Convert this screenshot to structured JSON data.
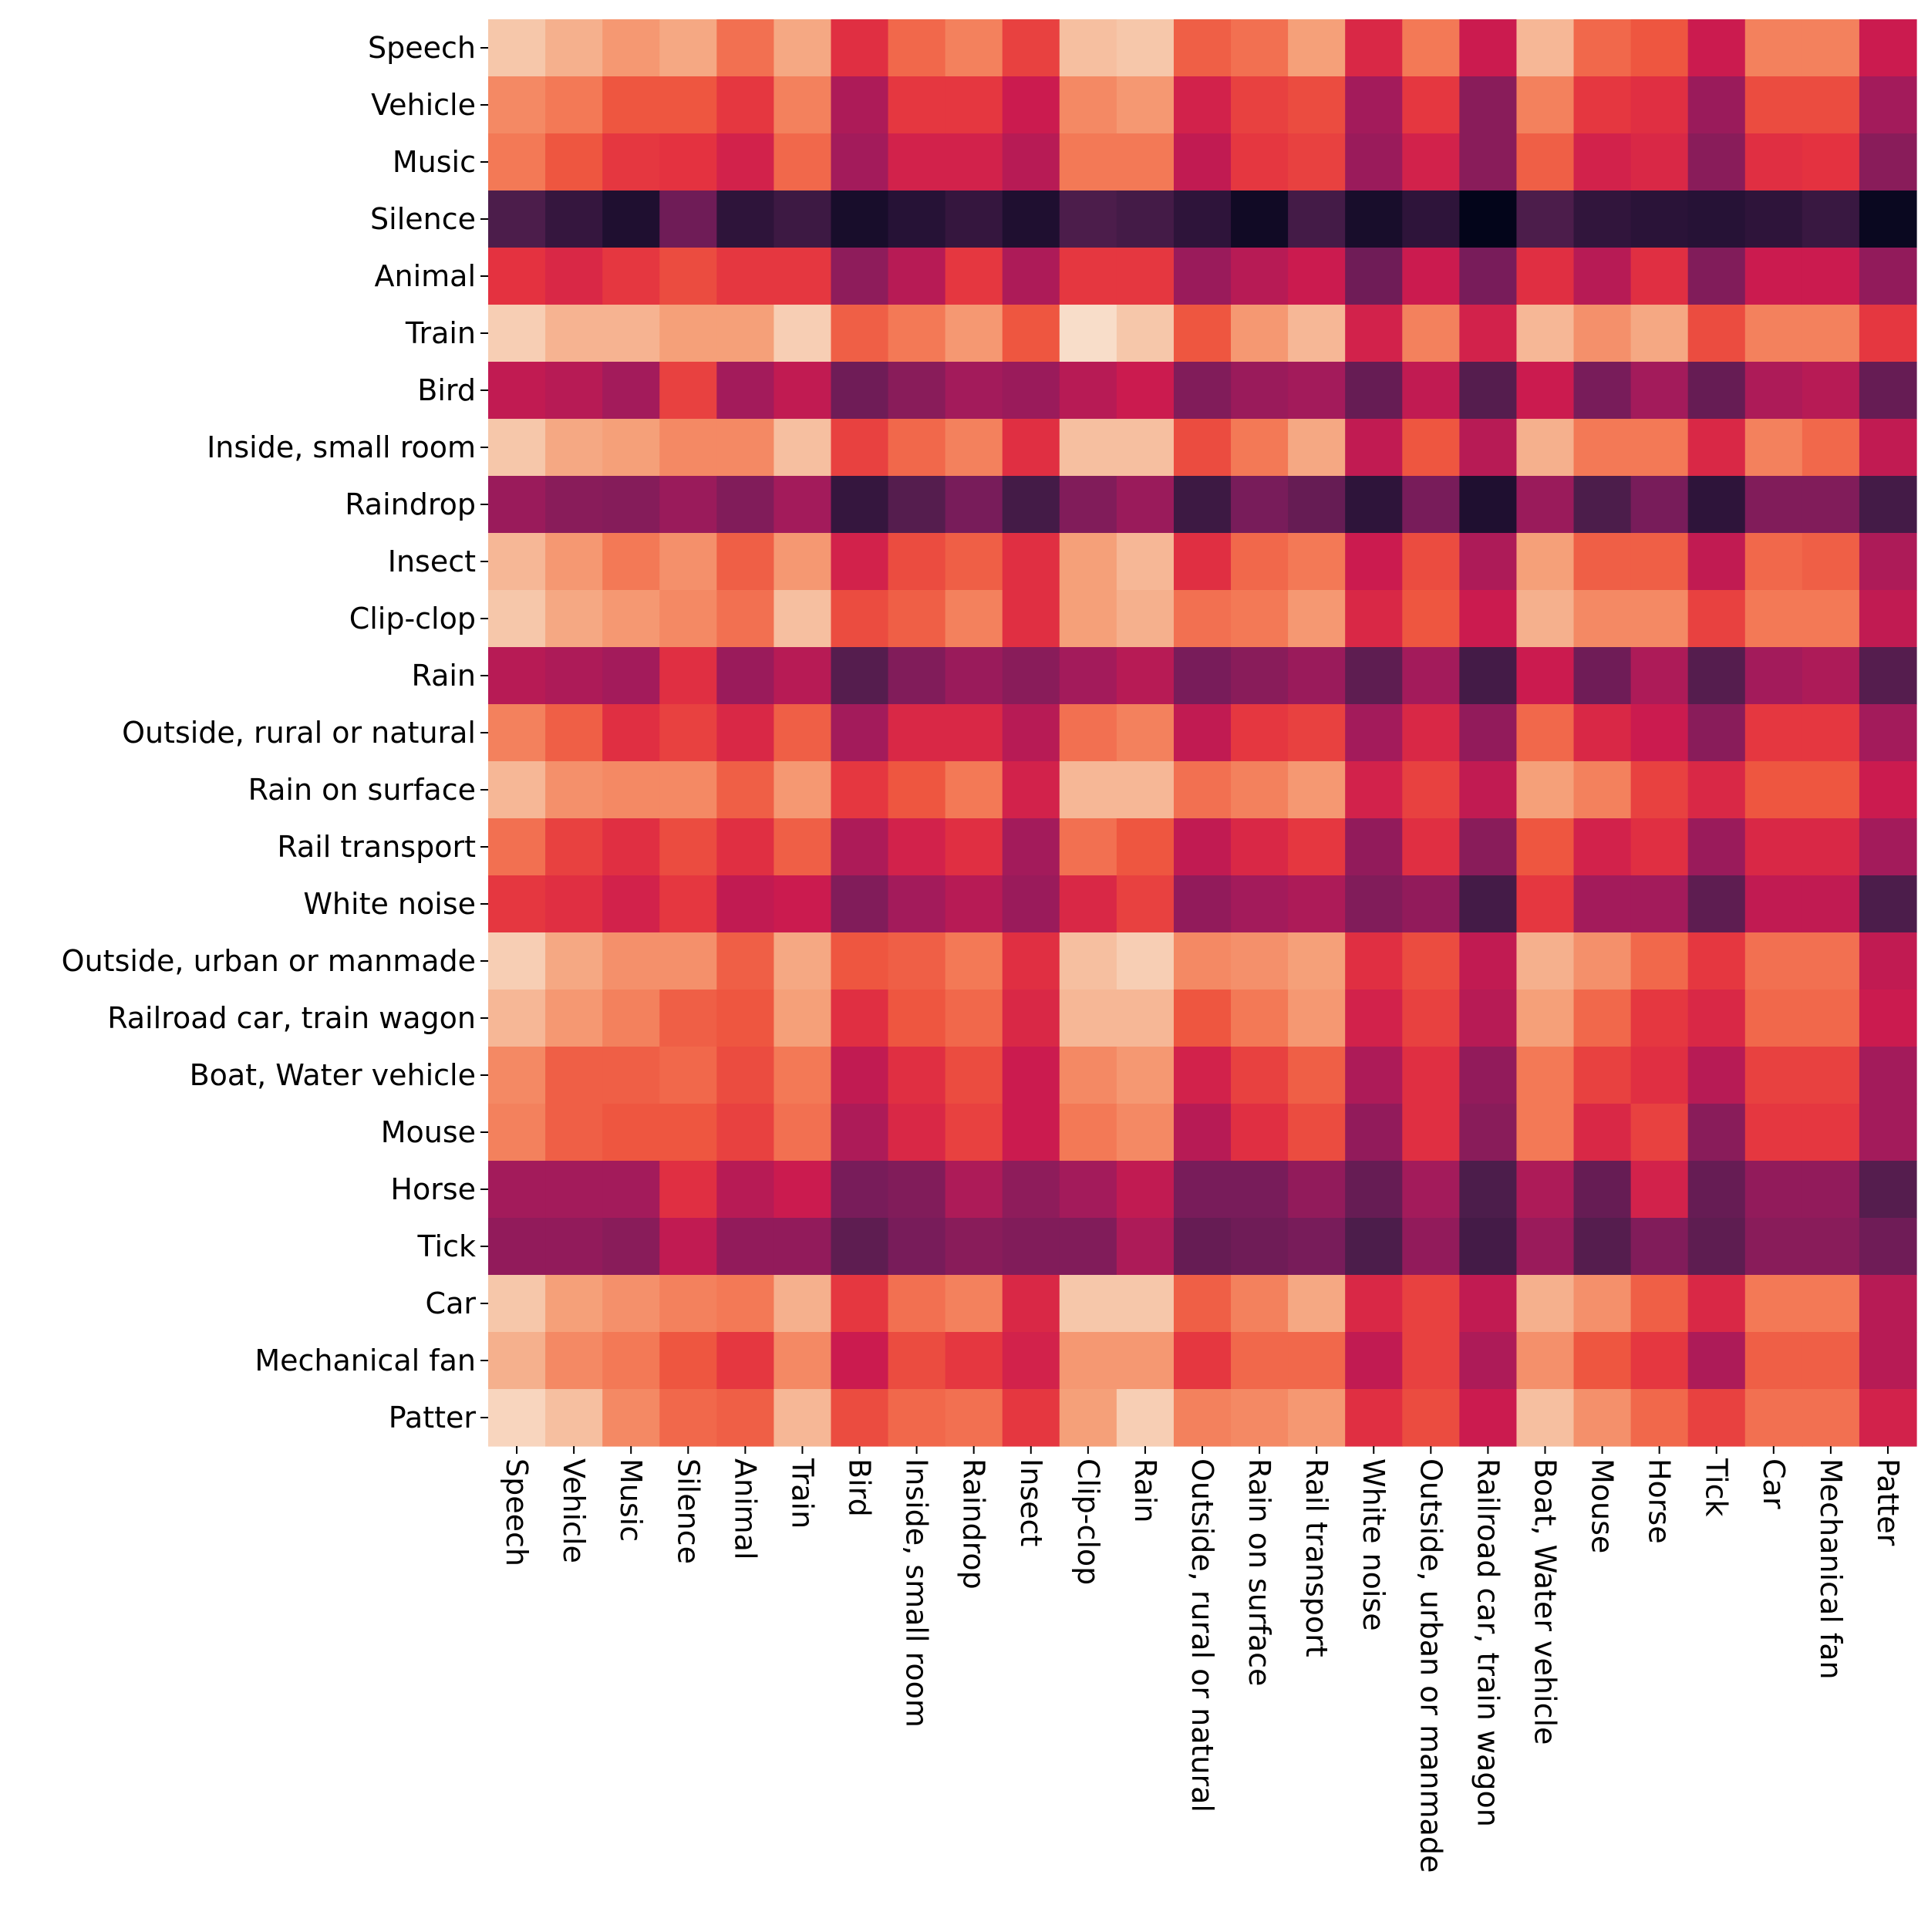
{
  "chart_data": {
    "type": "heatmap",
    "title": "",
    "xlabel": "",
    "ylabel": "",
    "colormap": "rocket",
    "grid": false,
    "legend": "none",
    "row_labels": [
      "Speech",
      "Vehicle",
      "Music",
      "Silence",
      "Animal",
      "Train",
      "Bird",
      "Inside, small room",
      "Raindrop",
      "Insect",
      "Clip-clop",
      "Rain",
      "Outside, rural or natural",
      "Rain on surface",
      "Rail transport",
      "White noise",
      "Outside, urban or manmade",
      "Railroad car, train wagon",
      "Boat, Water vehicle",
      "Mouse",
      "Horse",
      "Tick",
      "Car",
      "Mechanical fan",
      "Patter"
    ],
    "col_labels": [
      "Speech",
      "Vehicle",
      "Music",
      "Silence",
      "Animal",
      "Train",
      "Bird",
      "Inside, small room",
      "Raindrop",
      "Insect",
      "Clip-clop",
      "Rain",
      "Outside, rural or natural",
      "Rain on surface",
      "Rail transport",
      "White noise",
      "Outside, urban or manmade",
      "Railroad car, train wagon",
      "Boat, Water vehicle",
      "Mouse",
      "Horse",
      "Tick",
      "Car",
      "Mechanical fan",
      "Patter"
    ],
    "values_scale": [
      0,
      1
    ],
    "values": [
      [
        0.9,
        0.84,
        0.78,
        0.82,
        0.68,
        0.82,
        0.54,
        0.66,
        0.72,
        0.58,
        0.88,
        0.9,
        0.64,
        0.68,
        0.8,
        0.52,
        0.7,
        0.48,
        0.86,
        0.66,
        0.62,
        0.48,
        0.72,
        0.72,
        0.48
      ],
      [
        0.74,
        0.7,
        0.62,
        0.62,
        0.56,
        0.72,
        0.42,
        0.56,
        0.56,
        0.48,
        0.74,
        0.78,
        0.5,
        0.58,
        0.6,
        0.4,
        0.56,
        0.34,
        0.72,
        0.56,
        0.54,
        0.38,
        0.6,
        0.6,
        0.4
      ],
      [
        0.7,
        0.62,
        0.56,
        0.55,
        0.5,
        0.66,
        0.4,
        0.5,
        0.5,
        0.44,
        0.7,
        0.7,
        0.46,
        0.56,
        0.58,
        0.38,
        0.5,
        0.34,
        0.64,
        0.5,
        0.52,
        0.34,
        0.54,
        0.55,
        0.34
      ],
      [
        0.2,
        0.14,
        0.08,
        0.28,
        0.12,
        0.16,
        0.06,
        0.1,
        0.14,
        0.08,
        0.2,
        0.18,
        0.12,
        0.04,
        0.18,
        0.06,
        0.12,
        0.0,
        0.2,
        0.13,
        0.11,
        0.1,
        0.12,
        0.15,
        0.02
      ],
      [
        0.55,
        0.52,
        0.56,
        0.6,
        0.56,
        0.56,
        0.35,
        0.44,
        0.56,
        0.42,
        0.56,
        0.56,
        0.38,
        0.44,
        0.48,
        0.28,
        0.48,
        0.3,
        0.54,
        0.44,
        0.54,
        0.32,
        0.48,
        0.48,
        0.36
      ],
      [
        0.92,
        0.85,
        0.85,
        0.8,
        0.8,
        0.92,
        0.64,
        0.7,
        0.78,
        0.62,
        0.96,
        0.9,
        0.62,
        0.78,
        0.86,
        0.5,
        0.72,
        0.5,
        0.86,
        0.76,
        0.82,
        0.6,
        0.72,
        0.72,
        0.56
      ],
      [
        0.46,
        0.44,
        0.4,
        0.58,
        0.4,
        0.46,
        0.28,
        0.34,
        0.4,
        0.38,
        0.44,
        0.48,
        0.32,
        0.38,
        0.4,
        0.26,
        0.46,
        0.22,
        0.48,
        0.3,
        0.4,
        0.26,
        0.42,
        0.44,
        0.26
      ],
      [
        0.9,
        0.82,
        0.8,
        0.74,
        0.74,
        0.88,
        0.58,
        0.66,
        0.72,
        0.54,
        0.88,
        0.88,
        0.6,
        0.7,
        0.82,
        0.46,
        0.62,
        0.44,
        0.84,
        0.7,
        0.7,
        0.52,
        0.72,
        0.66,
        0.46
      ],
      [
        0.38,
        0.34,
        0.33,
        0.38,
        0.32,
        0.4,
        0.14,
        0.22,
        0.3,
        0.18,
        0.32,
        0.38,
        0.16,
        0.3,
        0.26,
        0.12,
        0.3,
        0.08,
        0.38,
        0.2,
        0.3,
        0.12,
        0.32,
        0.32,
        0.18
      ],
      [
        0.86,
        0.78,
        0.7,
        0.76,
        0.64,
        0.78,
        0.5,
        0.6,
        0.64,
        0.54,
        0.8,
        0.86,
        0.54,
        0.66,
        0.7,
        0.48,
        0.6,
        0.42,
        0.8,
        0.64,
        0.64,
        0.46,
        0.66,
        0.64,
        0.42
      ],
      [
        0.9,
        0.82,
        0.78,
        0.74,
        0.68,
        0.88,
        0.6,
        0.64,
        0.72,
        0.54,
        0.8,
        0.84,
        0.68,
        0.7,
        0.78,
        0.52,
        0.62,
        0.48,
        0.84,
        0.74,
        0.74,
        0.58,
        0.7,
        0.7,
        0.46
      ],
      [
        0.44,
        0.42,
        0.4,
        0.54,
        0.38,
        0.44,
        0.22,
        0.32,
        0.38,
        0.34,
        0.4,
        0.44,
        0.3,
        0.34,
        0.38,
        0.24,
        0.4,
        0.18,
        0.48,
        0.28,
        0.42,
        0.22,
        0.4,
        0.42,
        0.22
      ],
      [
        0.72,
        0.64,
        0.54,
        0.58,
        0.52,
        0.64,
        0.4,
        0.52,
        0.52,
        0.44,
        0.68,
        0.72,
        0.46,
        0.56,
        0.58,
        0.4,
        0.52,
        0.36,
        0.66,
        0.52,
        0.48,
        0.34,
        0.56,
        0.56,
        0.4
      ],
      [
        0.86,
        0.76,
        0.74,
        0.74,
        0.64,
        0.78,
        0.56,
        0.62,
        0.7,
        0.5,
        0.86,
        0.86,
        0.68,
        0.72,
        0.78,
        0.5,
        0.58,
        0.46,
        0.8,
        0.72,
        0.58,
        0.52,
        0.62,
        0.62,
        0.48
      ],
      [
        0.68,
        0.58,
        0.54,
        0.6,
        0.54,
        0.64,
        0.42,
        0.5,
        0.54,
        0.4,
        0.68,
        0.62,
        0.46,
        0.52,
        0.56,
        0.36,
        0.54,
        0.34,
        0.62,
        0.5,
        0.54,
        0.38,
        0.52,
        0.52,
        0.4
      ],
      [
        0.56,
        0.54,
        0.5,
        0.56,
        0.46,
        0.48,
        0.32,
        0.4,
        0.44,
        0.38,
        0.52,
        0.58,
        0.36,
        0.4,
        0.42,
        0.32,
        0.36,
        0.18,
        0.56,
        0.4,
        0.4,
        0.24,
        0.46,
        0.46,
        0.2
      ],
      [
        0.92,
        0.82,
        0.76,
        0.76,
        0.64,
        0.82,
        0.62,
        0.64,
        0.7,
        0.54,
        0.88,
        0.92,
        0.74,
        0.76,
        0.8,
        0.54,
        0.6,
        0.46,
        0.84,
        0.76,
        0.66,
        0.56,
        0.68,
        0.68,
        0.46
      ],
      [
        0.86,
        0.78,
        0.72,
        0.64,
        0.62,
        0.8,
        0.54,
        0.62,
        0.66,
        0.52,
        0.86,
        0.86,
        0.62,
        0.7,
        0.78,
        0.5,
        0.58,
        0.44,
        0.8,
        0.66,
        0.56,
        0.52,
        0.66,
        0.66,
        0.48
      ],
      [
        0.74,
        0.64,
        0.64,
        0.66,
        0.6,
        0.7,
        0.46,
        0.54,
        0.6,
        0.48,
        0.74,
        0.78,
        0.5,
        0.58,
        0.64,
        0.42,
        0.54,
        0.36,
        0.7,
        0.58,
        0.54,
        0.44,
        0.58,
        0.58,
        0.4
      ],
      [
        0.72,
        0.64,
        0.62,
        0.62,
        0.58,
        0.68,
        0.42,
        0.52,
        0.58,
        0.48,
        0.7,
        0.74,
        0.44,
        0.54,
        0.6,
        0.36,
        0.54,
        0.34,
        0.7,
        0.52,
        0.58,
        0.34,
        0.56,
        0.56,
        0.4
      ],
      [
        0.4,
        0.4,
        0.4,
        0.54,
        0.44,
        0.48,
        0.3,
        0.32,
        0.42,
        0.35,
        0.4,
        0.46,
        0.3,
        0.3,
        0.36,
        0.26,
        0.4,
        0.2,
        0.42,
        0.26,
        0.5,
        0.26,
        0.36,
        0.36,
        0.22
      ],
      [
        0.36,
        0.36,
        0.34,
        0.46,
        0.36,
        0.36,
        0.24,
        0.3,
        0.34,
        0.32,
        0.32,
        0.42,
        0.26,
        0.28,
        0.3,
        0.2,
        0.36,
        0.18,
        0.38,
        0.22,
        0.32,
        0.24,
        0.34,
        0.34,
        0.28
      ],
      [
        0.9,
        0.8,
        0.76,
        0.72,
        0.7,
        0.84,
        0.56,
        0.68,
        0.72,
        0.52,
        0.9,
        0.9,
        0.64,
        0.72,
        0.82,
        0.52,
        0.58,
        0.46,
        0.84,
        0.76,
        0.64,
        0.52,
        0.7,
        0.7,
        0.44
      ],
      [
        0.84,
        0.74,
        0.7,
        0.62,
        0.56,
        0.74,
        0.48,
        0.6,
        0.56,
        0.5,
        0.78,
        0.78,
        0.56,
        0.66,
        0.66,
        0.46,
        0.58,
        0.42,
        0.76,
        0.62,
        0.56,
        0.42,
        0.64,
        0.64,
        0.44
      ],
      [
        0.94,
        0.88,
        0.74,
        0.66,
        0.64,
        0.86,
        0.6,
        0.66,
        0.68,
        0.56,
        0.8,
        0.92,
        0.72,
        0.74,
        0.78,
        0.54,
        0.6,
        0.48,
        0.88,
        0.76,
        0.66,
        0.58,
        0.68,
        0.68,
        0.5
      ]
    ]
  }
}
